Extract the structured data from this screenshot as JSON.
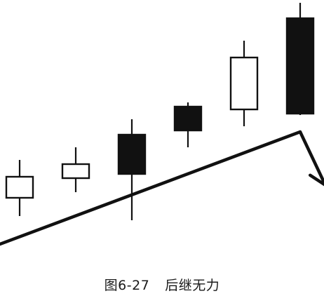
{
  "figure": {
    "number": "图6-27",
    "title": "后继无力"
  },
  "colors": {
    "ink": "#111111",
    "paper": "#ffffff"
  },
  "chart_data": {
    "type": "candlestick",
    "title": "后继无力",
    "ylim": [
      0,
      422
    ],
    "candles": [
      {
        "index": 1,
        "open": 140,
        "close": 170,
        "high": 194,
        "low": 114,
        "color": "white"
      },
      {
        "index": 2,
        "open": 168,
        "close": 188,
        "high": 212,
        "low": 148,
        "color": "white"
      },
      {
        "index": 3,
        "open": 230,
        "close": 174,
        "high": 252,
        "low": 108,
        "color": "black"
      },
      {
        "index": 4,
        "open": 270,
        "close": 236,
        "high": 276,
        "low": 212,
        "color": "black"
      },
      {
        "index": 5,
        "open": 266,
        "close": 340,
        "high": 364,
        "low": 242,
        "color": "white"
      },
      {
        "index": 6,
        "open": 396,
        "close": 260,
        "high": 418,
        "low": 258,
        "color": "black"
      }
    ],
    "trend_line": {
      "from": {
        "index": 0.25,
        "value": 62
      },
      "to": {
        "index": 6.0,
        "value": 234
      }
    },
    "reversal_arrow": {
      "from": {
        "index": 6.0,
        "value": 234
      },
      "to": {
        "index": 6.45,
        "value": 158
      }
    }
  }
}
